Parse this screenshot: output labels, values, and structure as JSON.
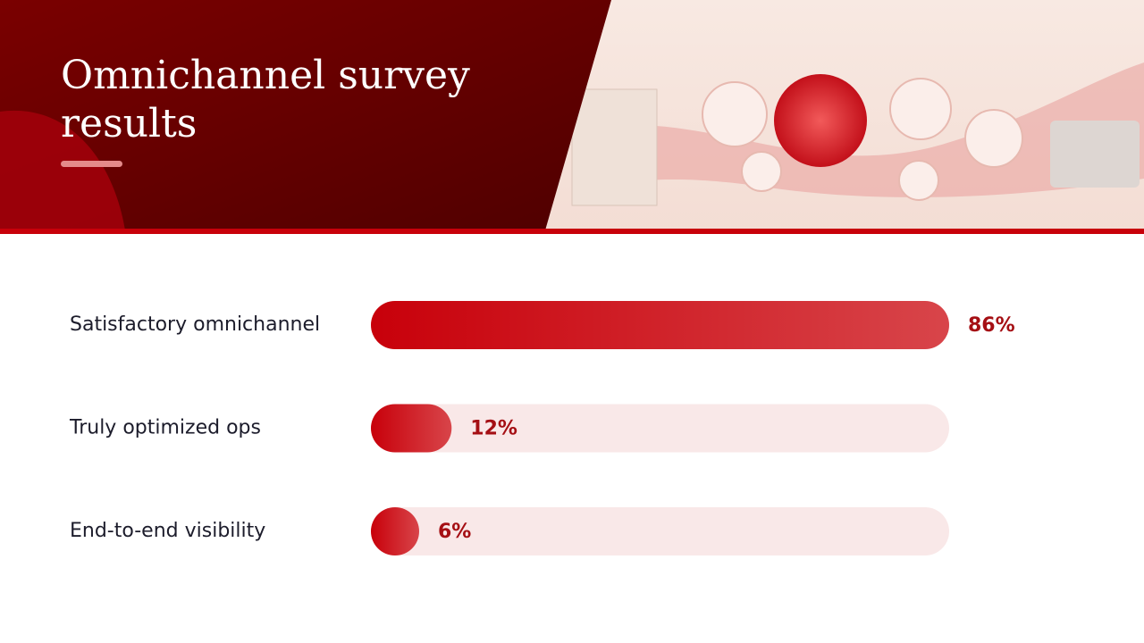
{
  "chart_data": {
    "type": "bar",
    "orientation": "horizontal",
    "title": "Omnichannel survey results",
    "categories": [
      "Satisfactory omnichannel",
      "Truly optimized ops",
      "End-to-end visibility"
    ],
    "values": [
      86,
      12,
      6
    ],
    "value_labels": [
      "86%",
      "12%",
      "6%"
    ],
    "color": "#c8000a",
    "track_color": "#f9e8e8",
    "label_color": "#a50f14"
  }
}
